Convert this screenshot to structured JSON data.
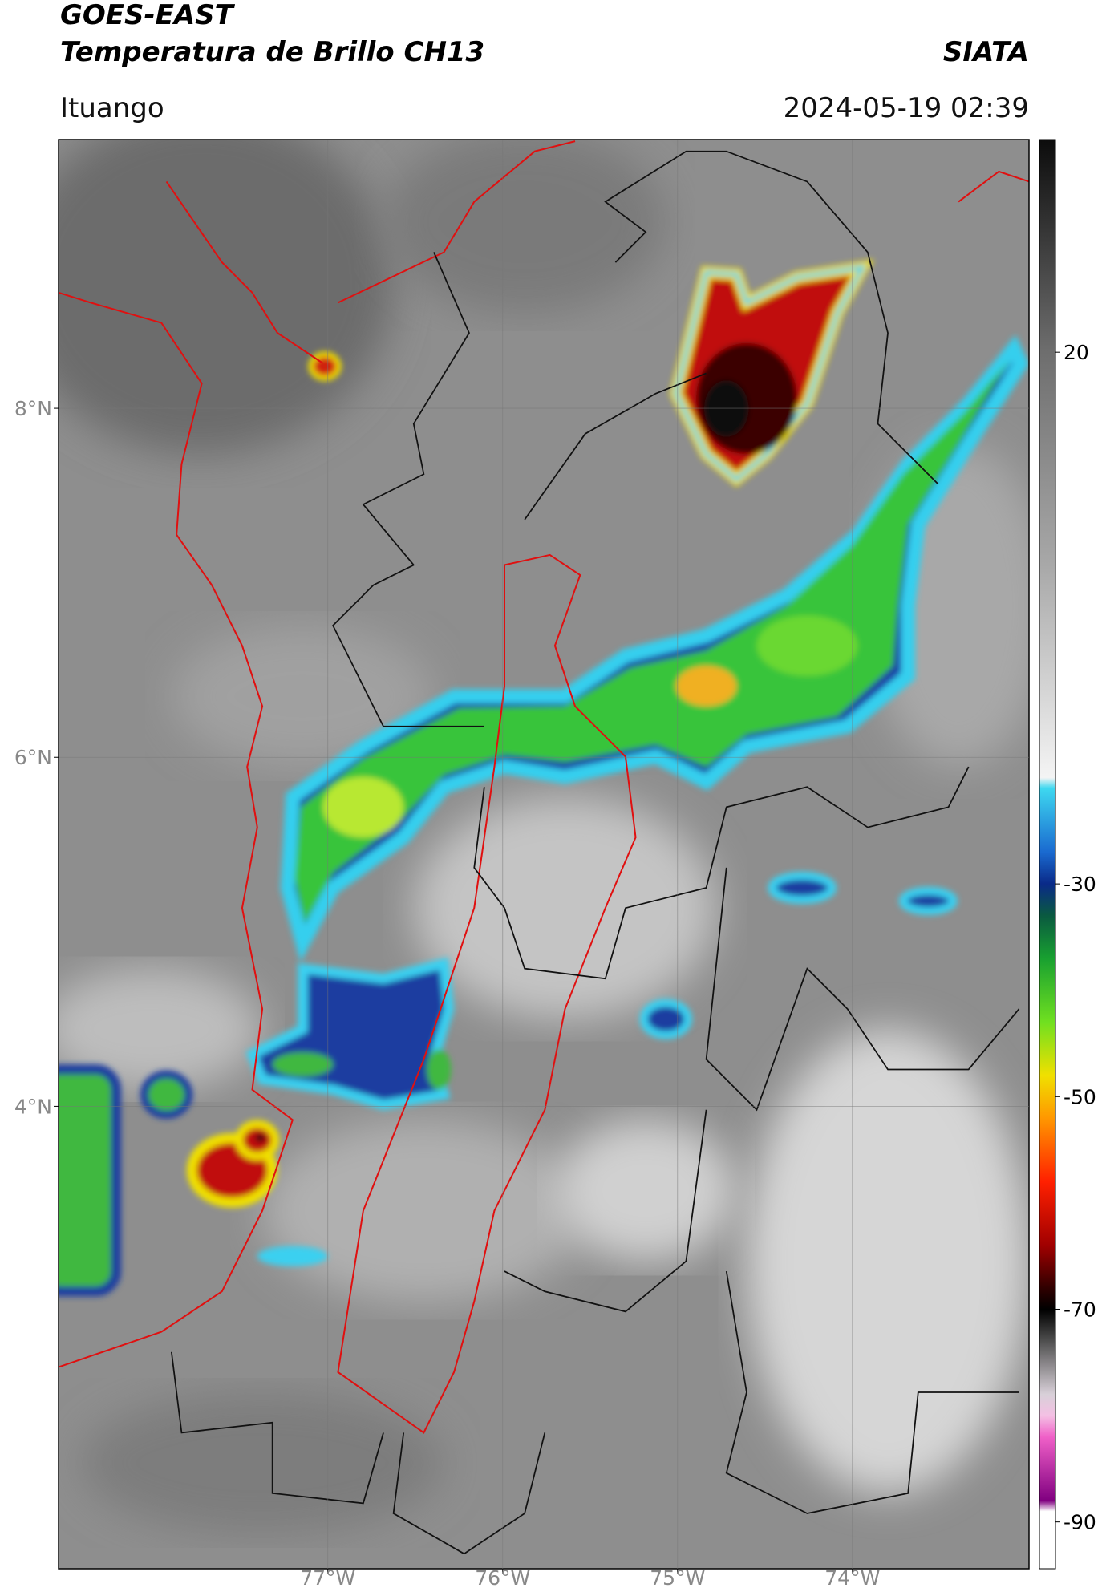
{
  "header": {
    "title": "GOES-EAST",
    "subtitle": "Temperatura de Brillo CH13",
    "agency": "SIATA",
    "location": "Ituango",
    "timestamp": "2024-05-19 02:39"
  },
  "map": {
    "xlim": [
      -78.54,
      -72.99
    ],
    "ylim": [
      1.35,
      9.54
    ],
    "grid": true,
    "xticks": [
      {
        "value": -77,
        "label": "77°W"
      },
      {
        "value": -76,
        "label": "76°W"
      },
      {
        "value": -75,
        "label": "75°W"
      },
      {
        "value": -74,
        "label": "74°W"
      }
    ],
    "yticks": [
      {
        "value": 8,
        "label": "8°N"
      },
      {
        "value": 6,
        "label": "6°N"
      },
      {
        "value": 4,
        "label": "4°N"
      }
    ]
  },
  "colorbar": {
    "lim": [
      -94.4,
      40
    ],
    "ticks": [
      20,
      -30,
      -50,
      -70,
      -90
    ],
    "colormap": [
      {
        "value": 40,
        "color": "#0c0c0c"
      },
      {
        "value": 20,
        "color": "#6e6e6e"
      },
      {
        "value": 0,
        "color": "#a8a8a8"
      },
      {
        "value": -20,
        "color": "#f4f4f4"
      },
      {
        "value": -21,
        "color": "#3ed8f0"
      },
      {
        "value": -27,
        "color": "#1a6ad0"
      },
      {
        "value": -30,
        "color": "#0a2a88"
      },
      {
        "value": -33,
        "color": "#0a5a40"
      },
      {
        "value": -37,
        "color": "#18a030"
      },
      {
        "value": -43,
        "color": "#70e020"
      },
      {
        "value": -48,
        "color": "#f0e000"
      },
      {
        "value": -52,
        "color": "#ff9800"
      },
      {
        "value": -58,
        "color": "#ff2000"
      },
      {
        "value": -64,
        "color": "#a00000"
      },
      {
        "value": -68,
        "color": "#300000"
      },
      {
        "value": -70,
        "color": "#000000"
      },
      {
        "value": -73,
        "color": "#505050"
      },
      {
        "value": -78,
        "color": "#d8d0d8"
      },
      {
        "value": -80,
        "color": "#f4c0e4"
      },
      {
        "value": -82,
        "color": "#f060c8"
      },
      {
        "value": -88,
        "color": "#800080"
      },
      {
        "value": -89,
        "color": "#ffffff"
      },
      {
        "value": -94.4,
        "color": "#ffffff"
      }
    ]
  }
}
